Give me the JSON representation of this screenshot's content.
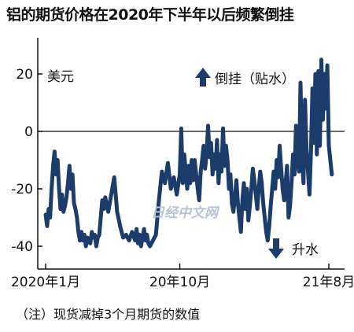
{
  "header": {
    "title": "铝的期货价格在2020年下半年以后频繁倒挂"
  },
  "footer": {
    "note": "（注）现货减掉3个月期货的数值"
  },
  "watermark": {
    "text": "日经中文网"
  },
  "colors": {
    "line": "#1c3d6b",
    "axis": "#111111"
  },
  "chart_data": {
    "type": "line",
    "title": "铝的期货价格在2020年下半年以后频繁倒挂",
    "ylabel": "美元",
    "ylim": [
      -45,
      30
    ],
    "yticks": [
      20,
      0,
      -20,
      -40
    ],
    "ytick_labels": [
      "20",
      "0",
      "-20",
      "-40"
    ],
    "x_range_month_index": [
      0,
      20.5
    ],
    "x_tick_month_index": [
      0,
      9,
      19
    ],
    "x_tick_labels": [
      "2020年1月",
      "20年10月",
      "21年8月"
    ],
    "annotations": {
      "up": "倒挂（贴水）",
      "down": "升水"
    },
    "series": [
      {
        "x_month_index": [
          0,
          0.1,
          0.2,
          0.3,
          0.4,
          0.5,
          0.6,
          0.7,
          0.8,
          0.9,
          1.0,
          1.1,
          1.2,
          1.3,
          1.4,
          1.5,
          1.6,
          1.7,
          1.8,
          1.9,
          2.0,
          2.1,
          2.2,
          2.3,
          2.4,
          2.5,
          2.6,
          2.7,
          2.8,
          2.9,
          3.0,
          3.1,
          3.2,
          3.3,
          3.4,
          3.5,
          3.6,
          3.7,
          3.8,
          3.9,
          4.0,
          4.2,
          4.4,
          4.6,
          4.8,
          5.0,
          5.2,
          5.4,
          5.6,
          5.8,
          6.0,
          6.1,
          6.2,
          6.3,
          6.4,
          6.5,
          6.6,
          6.7,
          6.8,
          6.9,
          7.0,
          7.2,
          7.4,
          7.6,
          7.8,
          8.0,
          8.2,
          8.4,
          8.6,
          8.8,
          9.0,
          9.1,
          9.2,
          9.3,
          9.4,
          9.5,
          9.6,
          9.7,
          9.8,
          9.9,
          10.0,
          10.1,
          10.2,
          10.3,
          10.4,
          10.5,
          10.6,
          10.7,
          10.8,
          10.9,
          11.0,
          11.1,
          11.2,
          11.3,
          11.4,
          11.5,
          11.6,
          11.7,
          11.8,
          11.9,
          12.0,
          12.1,
          12.2,
          12.3,
          12.4,
          12.5,
          12.6,
          12.7,
          12.8,
          12.9,
          13.0,
          13.1,
          13.2,
          13.3,
          13.4,
          13.5,
          13.6,
          13.7,
          13.8,
          13.9,
          14.0,
          14.1,
          14.2,
          14.3,
          14.4,
          14.5,
          14.6,
          14.7,
          14.8,
          14.9,
          15.0,
          15.1,
          15.2,
          15.3,
          15.4,
          15.5,
          15.6,
          15.7,
          15.8,
          15.9,
          16.0,
          16.1,
          16.2,
          16.3,
          16.4,
          16.5,
          16.6,
          16.7,
          16.8,
          16.9,
          17.0,
          17.1,
          17.2,
          17.3,
          17.4,
          17.5,
          17.6,
          17.7,
          17.8,
          17.9,
          18.0,
          18.1,
          18.2,
          18.3,
          18.4,
          18.5,
          18.6,
          18.7,
          18.8,
          18.9,
          19.0,
          19.1,
          19.2,
          19.3,
          19.4,
          19.5,
          19.6,
          19.7,
          19.8
        ],
        "values": [
          -29,
          -33,
          -27,
          -30,
          -20,
          -12,
          -7,
          -15,
          -10,
          -20,
          -27,
          -22,
          -28,
          -26,
          -23,
          -18,
          -12,
          -20,
          -15,
          -25,
          -27,
          -30,
          -35,
          -38,
          -35,
          -38,
          -36,
          -40,
          -37,
          -38,
          -39,
          -35,
          -37,
          -36,
          -40,
          -37,
          -36,
          -30,
          -24,
          -27,
          -23,
          -28,
          -22,
          -16,
          -28,
          -33,
          -37,
          -36,
          -38,
          -35,
          -38,
          -34,
          -39,
          -36,
          -40,
          -37,
          -34,
          -38,
          -36,
          -39,
          -40,
          -38,
          -36,
          -24,
          -14,
          -18,
          -11,
          -20,
          -16,
          -22,
          -15,
          1,
          -18,
          -8,
          -14,
          -20,
          -12,
          -18,
          -10,
          -17,
          -10,
          -15,
          -20,
          -24,
          -14,
          -10,
          -5,
          -13,
          -8,
          2,
          -9,
          -4,
          -15,
          -8,
          -13,
          -3,
          -18,
          -8,
          -14,
          1,
          -12,
          -5,
          -10,
          -20,
          -15,
          -25,
          -28,
          -23,
          -17,
          -25,
          -30,
          -35,
          -24,
          -18,
          -27,
          -20,
          -31,
          -26,
          -20,
          -13,
          -17,
          -22,
          -27,
          -20,
          -14,
          -18,
          -25,
          -30,
          -35,
          -38,
          -33,
          -26,
          -20,
          -14,
          -20,
          -10,
          -16,
          -5,
          -13,
          -20,
          -24,
          -18,
          -12,
          -30,
          -26,
          -18,
          -8,
          -15,
          2,
          -10,
          -14,
          17,
          -9,
          -18,
          11,
          -6,
          -14,
          -22,
          -7,
          15,
          -4,
          20,
          -8,
          21,
          -5,
          25,
          4,
          20,
          8,
          23,
          -5,
          -10,
          -15
        ]
      }
    ]
  }
}
